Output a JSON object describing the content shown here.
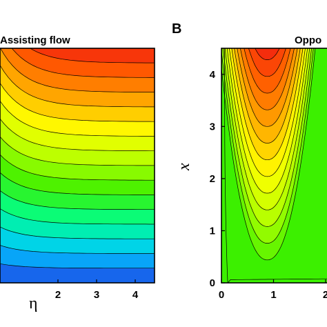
{
  "chart_data": [
    {
      "type": "contour",
      "panel_label": "",
      "title": "Assisting flow",
      "xlabel": "η",
      "ylabel": "",
      "xlim": [
        0.5,
        4.5
      ],
      "ylim": [
        0,
        4.5
      ],
      "xticks": [
        "2",
        "3",
        "4"
      ],
      "yticks": [],
      "levels": 16,
      "colormap": [
        "#1e46e6",
        "#00c8ff",
        "#00ff90",
        "#3cf000",
        "#b4ff00",
        "#ffff00",
        "#ffaa00",
        "#ff5a00",
        "#f01414"
      ],
      "description_field": "contours rise from bottom (blue) to top (red), levelling out as η increases"
    },
    {
      "type": "contour",
      "panel_label": "B",
      "title": "Oppo",
      "xlabel": "",
      "ylabel": "x",
      "xlim": [
        0,
        2.3
      ],
      "ylim": [
        0,
        4.5
      ],
      "xticks": [
        "0",
        "1",
        "2"
      ],
      "yticks": [
        "0",
        "1",
        "2",
        "3",
        "4"
      ],
      "levels": 14,
      "colormap": [
        "#3cf000",
        "#b4ff00",
        "#ffff00",
        "#ffaa00",
        "#ff5a00",
        "#f01414"
      ],
      "description_field": "U-shaped contours centred near x = 0.9, maximum (red) at the top"
    }
  ]
}
